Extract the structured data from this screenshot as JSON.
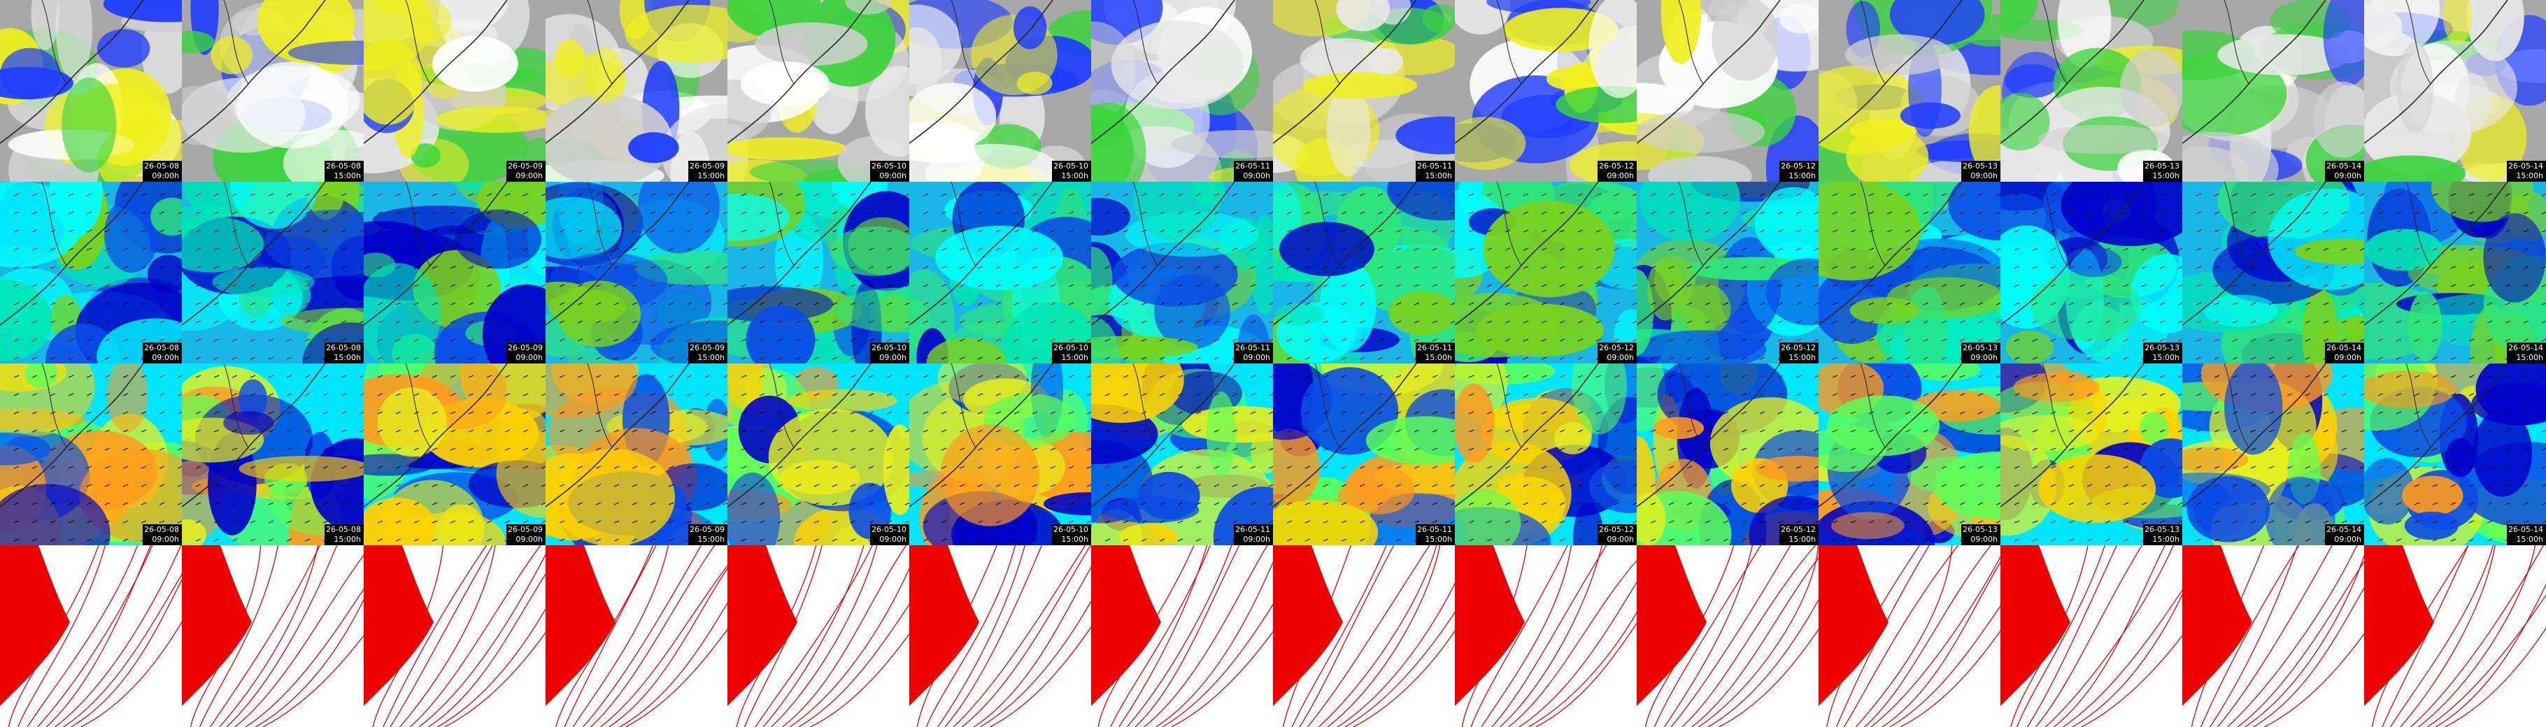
{
  "columns": [
    {
      "date": "26-05-08",
      "time": "09:00h"
    },
    {
      "date": "26-05-08",
      "time": "15:00h"
    },
    {
      "date": "26-05-09",
      "time": "09:00h"
    },
    {
      "date": "26-05-09",
      "time": "15:00h"
    },
    {
      "date": "26-05-10",
      "time": "09:00h"
    },
    {
      "date": "26-05-10",
      "time": "15:00h"
    },
    {
      "date": "26-05-11",
      "time": "09:00h"
    },
    {
      "date": "26-05-11",
      "time": "15:00h"
    },
    {
      "date": "26-05-12",
      "time": "09:00h"
    },
    {
      "date": "26-05-12",
      "time": "15:00h"
    },
    {
      "date": "26-05-13",
      "time": "09:00h"
    },
    {
      "date": "26-05-13",
      "time": "15:00h"
    },
    {
      "date": "26-05-14",
      "time": "09:00h"
    },
    {
      "date": "26-05-14",
      "time": "15:00h"
    }
  ]
}
